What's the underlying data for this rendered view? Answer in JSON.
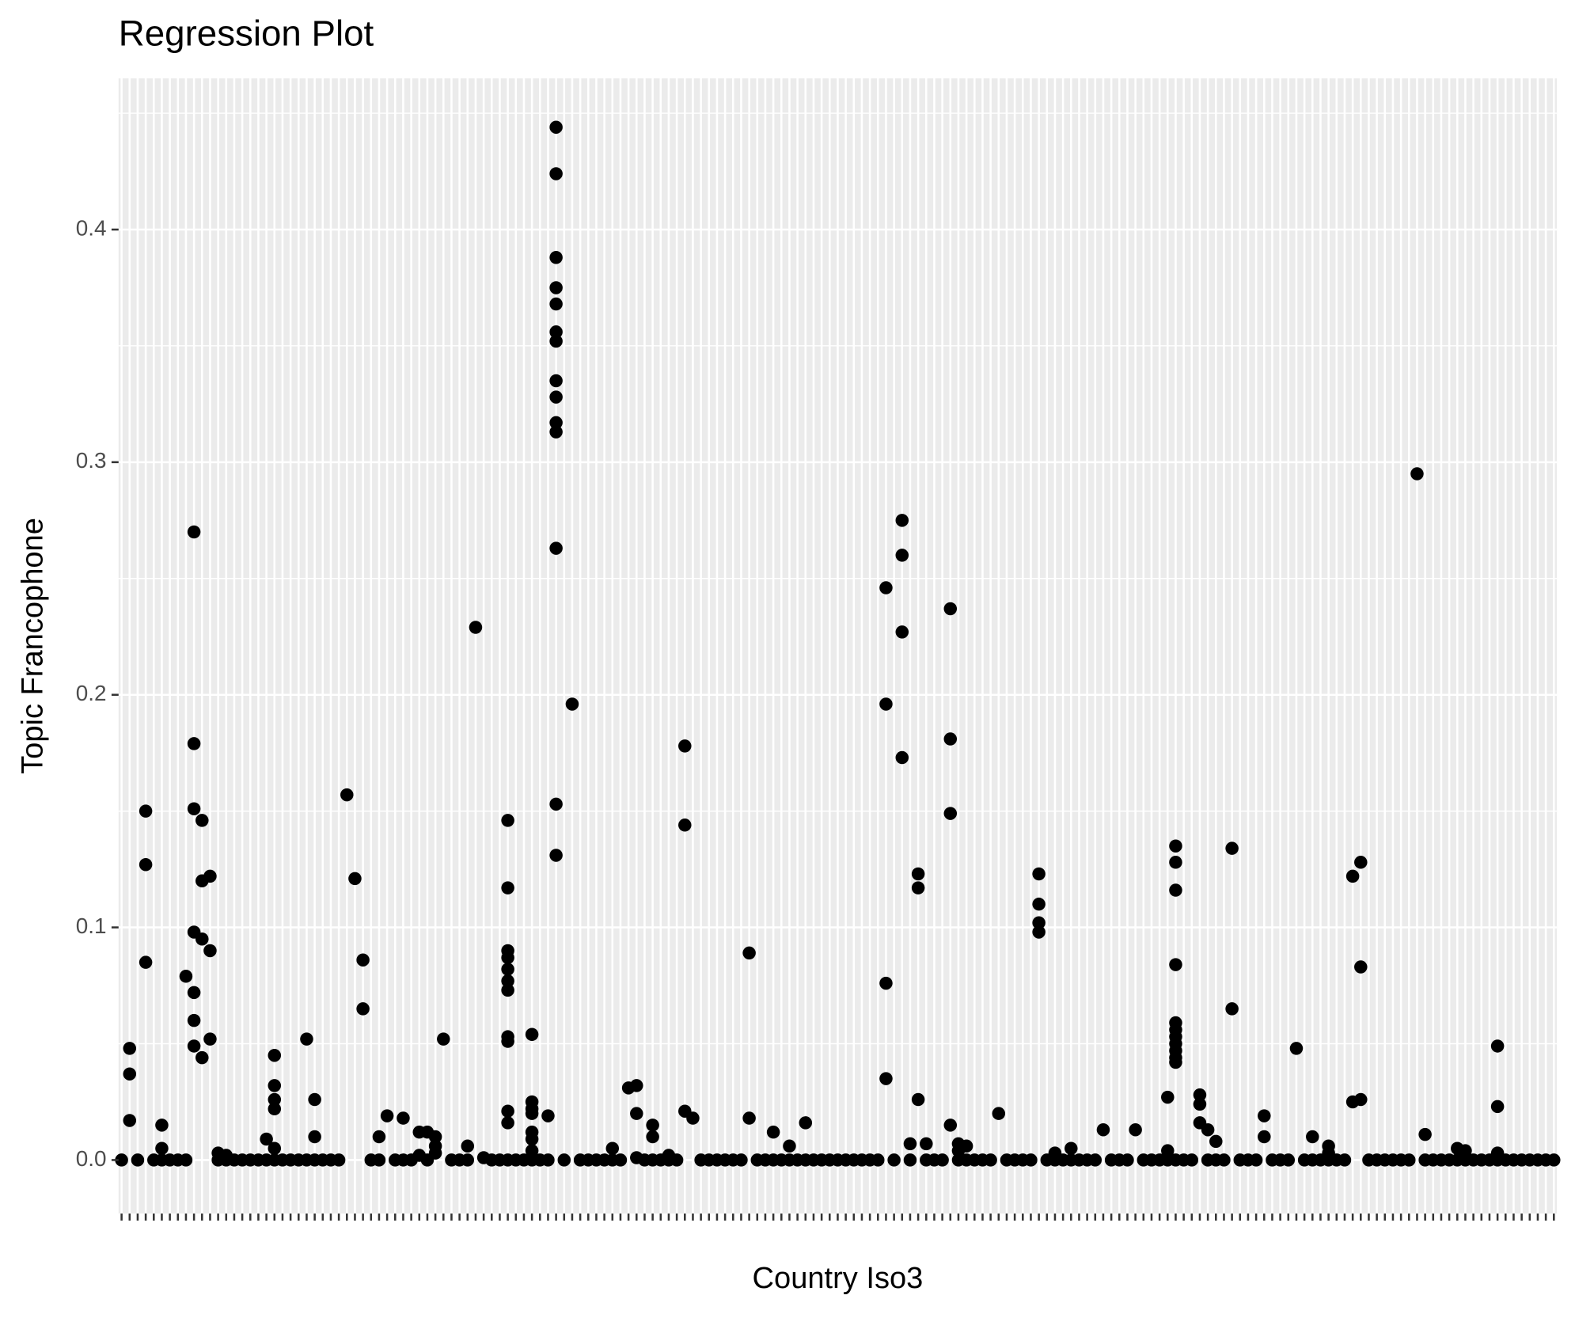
{
  "chart_data": {
    "type": "scatter",
    "title": "Regression Plot",
    "xlabel": "Country Iso3",
    "ylabel": "Topic Francophone",
    "color": "#000000",
    "grid": true,
    "ylim": [
      -0.023,
      0.465
    ],
    "yticks": [
      {
        "value": 0,
        "label": "0.0"
      },
      0.1,
      0.2,
      0.3,
      0.4
    ],
    "categories": [
      null,
      null,
      null,
      null,
      null,
      null,
      null,
      null,
      null,
      null,
      null,
      null,
      null,
      null,
      null,
      null,
      null,
      null,
      null,
      null,
      null,
      null,
      null,
      null,
      null,
      null,
      null,
      null,
      null,
      null,
      null,
      null,
      null,
      null,
      null,
      null,
      null,
      null,
      null,
      null,
      null,
      null,
      null,
      null,
      null,
      null,
      null,
      null,
      null,
      null,
      null,
      null,
      null,
      null,
      null,
      null,
      null,
      null,
      null,
      null,
      null,
      null,
      null,
      null,
      null,
      null,
      null,
      null,
      null,
      null,
      null,
      null,
      null,
      null,
      null,
      null,
      null,
      null,
      null,
      null,
      null,
      null,
      null,
      null,
      null,
      null,
      null,
      null,
      null,
      null,
      null,
      null,
      null,
      null,
      null,
      null,
      null,
      null,
      null,
      null,
      null,
      null,
      null,
      null,
      null,
      null,
      null,
      null,
      null,
      null,
      null,
      null,
      null,
      null,
      null,
      null,
      null,
      null,
      null,
      null,
      null,
      null,
      null,
      null,
      null,
      null,
      null,
      null,
      null,
      null,
      null,
      null,
      null,
      null,
      null,
      null,
      null,
      null,
      null,
      null,
      null,
      null,
      null,
      null,
      null,
      null,
      null,
      null,
      null,
      null,
      null,
      null,
      null,
      null,
      null,
      null,
      null,
      null,
      null,
      null,
      null,
      null,
      null,
      null,
      null,
      null,
      null,
      null,
      null,
      null,
      null,
      null,
      null,
      null,
      null,
      null,
      null,
      null,
      null
    ],
    "values": [
      [
        0
      ],
      [
        0.048,
        0.037,
        0.017
      ],
      [
        0
      ],
      [
        0.15,
        0.127,
        0.085
      ],
      [
        0
      ],
      [
        0.015,
        0.005,
        0
      ],
      [
        0
      ],
      [
        0
      ],
      [
        0.079,
        0
      ],
      [
        0.27,
        0.179,
        0.151,
        0.098,
        0.072,
        0.06,
        0.049
      ],
      [
        0.146,
        0.12,
        0.095,
        0.044
      ],
      [
        0.122,
        0.09,
        0.052
      ],
      [
        0.003,
        0
      ],
      [
        0.002,
        0
      ],
      [
        0
      ],
      [
        0
      ],
      [
        0
      ],
      [
        0
      ],
      [
        0.009,
        0
      ],
      [
        0.045,
        0.032,
        0.026,
        0.022,
        0.005,
        0
      ],
      [
        0
      ],
      [
        0
      ],
      [
        0
      ],
      [
        0.052,
        0
      ],
      [
        0.026,
        0.01,
        0
      ],
      [
        0
      ],
      [
        0
      ],
      [
        0
      ],
      [
        0.157
      ],
      [
        0.121
      ],
      [
        0.086,
        0.065
      ],
      [
        0
      ],
      [
        0.01,
        0
      ],
      [
        0.019
      ],
      [
        0
      ],
      [
        0.018,
        0
      ],
      [
        0
      ],
      [
        0.012,
        0.002
      ],
      [
        0.012,
        0
      ],
      [
        0.01,
        0.006,
        0.003
      ],
      [
        0.052
      ],
      [
        0
      ],
      [
        0
      ],
      [
        0.006,
        0
      ],
      [
        0.229
      ],
      [
        0.001
      ],
      [
        0
      ],
      [
        0
      ],
      [
        0.146,
        0.117,
        0.09,
        0.087,
        0.082,
        0.077,
        0.073,
        0.053,
        0.051,
        0.021,
        0.016,
        0
      ],
      [
        0
      ],
      [
        0
      ],
      [
        0.054,
        0.025,
        0.022,
        0.02,
        0.012,
        0.009,
        0.004,
        0
      ],
      [
        0
      ],
      [
        0.019,
        0
      ],
      [
        0.444,
        0.424,
        0.388,
        0.375,
        0.368,
        0.356,
        0.352,
        0.335,
        0.328,
        0.317,
        0.313,
        0.263,
        0.153,
        0.131
      ],
      [
        0
      ],
      [
        0.196
      ],
      [
        0
      ],
      [
        0
      ],
      [
        0
      ],
      [
        0
      ],
      [
        0.005,
        0
      ],
      [
        0
      ],
      [
        0.031
      ],
      [
        0.032,
        0.02,
        0.001
      ],
      [
        0
      ],
      [
        0.015,
        0.01,
        0
      ],
      [
        0
      ],
      [
        0.002,
        0
      ],
      [
        0
      ],
      [
        0.178,
        0.144,
        0.021
      ],
      [
        0.018
      ],
      [
        0
      ],
      [
        0
      ],
      [
        0
      ],
      [
        0
      ],
      [
        0
      ],
      [
        0
      ],
      [
        0.089,
        0.018
      ],
      [
        0
      ],
      [
        0
      ],
      [
        0.012,
        0
      ],
      [
        0
      ],
      [
        0.006,
        0
      ],
      [
        0
      ],
      [
        0.016,
        0
      ],
      [
        0
      ],
      [
        0
      ],
      [
        0
      ],
      [
        0
      ],
      [
        0
      ],
      [
        0
      ],
      [
        0
      ],
      [
        0
      ],
      [
        0
      ],
      [
        0.246,
        0.196,
        0.076,
        0.035
      ],
      [
        0
      ],
      [
        0.275,
        0.26,
        0.227,
        0.173
      ],
      [
        0.007,
        0
      ],
      [
        0.123,
        0.117,
        0.026
      ],
      [
        0.007,
        0
      ],
      [
        0
      ],
      [
        0
      ],
      [
        0.237,
        0.181,
        0.149,
        0.015
      ],
      [
        0.007,
        0.004,
        0
      ],
      [
        0.006,
        0
      ],
      [
        0
      ],
      [
        0
      ],
      [
        0
      ],
      [
        0.02
      ],
      [
        0
      ],
      [
        0
      ],
      [
        0
      ],
      [
        0
      ],
      [
        0.123,
        0.11,
        0.102,
        0.098
      ],
      [
        0
      ],
      [
        0.003,
        0
      ],
      [
        0
      ],
      [
        0.005,
        0
      ],
      [
        0
      ],
      [
        0
      ],
      [
        0
      ],
      [
        0.013
      ],
      [
        0
      ],
      [
        0
      ],
      [
        0
      ],
      [
        0.013
      ],
      [
        0
      ],
      [
        0
      ],
      [
        0
      ],
      [
        0.027,
        0.004,
        0
      ],
      [
        0.135,
        0.128,
        0.116,
        0.084,
        0.059,
        0.056,
        0.053,
        0.05,
        0.047,
        0.044,
        0.042,
        0
      ],
      [
        0
      ],
      [
        0
      ],
      [
        0.028,
        0.024,
        0.016
      ],
      [
        0.013,
        0
      ],
      [
        0.008,
        0
      ],
      [
        0
      ],
      [
        0.134,
        0.065
      ],
      [
        0
      ],
      [
        0
      ],
      [
        0
      ],
      [
        0.019,
        0.01
      ],
      [
        0
      ],
      [
        0
      ],
      [
        0
      ],
      [
        0.048
      ],
      [
        0
      ],
      [
        0.01,
        0
      ],
      [
        0
      ],
      [
        0.006,
        0.003,
        0
      ],
      [
        0
      ],
      [
        0
      ],
      [
        0.122,
        0.025
      ],
      [
        0.128,
        0.083,
        0.026
      ],
      [
        0
      ],
      [
        0
      ],
      [
        0
      ],
      [
        0
      ],
      [
        0
      ],
      [
        0
      ],
      [
        0.295
      ],
      [
        0.011,
        0
      ],
      [
        0
      ],
      [
        0
      ],
      [
        0
      ],
      [
        0.005,
        0
      ],
      [
        0.004,
        0
      ],
      [
        0
      ],
      [
        0
      ],
      [
        0
      ],
      [
        0.049,
        0.023,
        0.003,
        0
      ],
      [
        0
      ],
      [
        0
      ],
      [
        0
      ],
      [
        0
      ],
      [
        0
      ],
      [
        0
      ],
      [
        0
      ]
    ]
  }
}
